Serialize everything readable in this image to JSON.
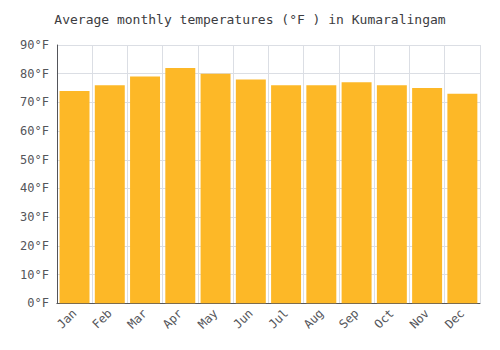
{
  "chart_data": {
    "type": "bar",
    "title": "Average monthly temperatures (°F ) in Kumaralingam",
    "categories": [
      "Jan",
      "Feb",
      "Mar",
      "Apr",
      "May",
      "Jun",
      "Jul",
      "Aug",
      "Sep",
      "Oct",
      "Nov",
      "Dec"
    ],
    "values": [
      74,
      76,
      79,
      82,
      80,
      78,
      76,
      76,
      77,
      76,
      75,
      73
    ],
    "color": "#FDB827",
    "ylim": [
      0,
      90
    ],
    "yticks": [
      {
        "value": 0,
        "label": "0°F"
      },
      {
        "value": 10,
        "label": "10°F"
      },
      {
        "value": 20,
        "label": "20°F"
      },
      {
        "value": 30,
        "label": "30°F"
      },
      {
        "value": 40,
        "label": "40°F"
      },
      {
        "value": 50,
        "label": "50°F"
      },
      {
        "value": 60,
        "label": "60°F"
      },
      {
        "value": 70,
        "label": "70°F"
      },
      {
        "value": 80,
        "label": "80°F"
      },
      {
        "value": 90,
        "label": "90°F"
      }
    ],
    "grid": true
  }
}
